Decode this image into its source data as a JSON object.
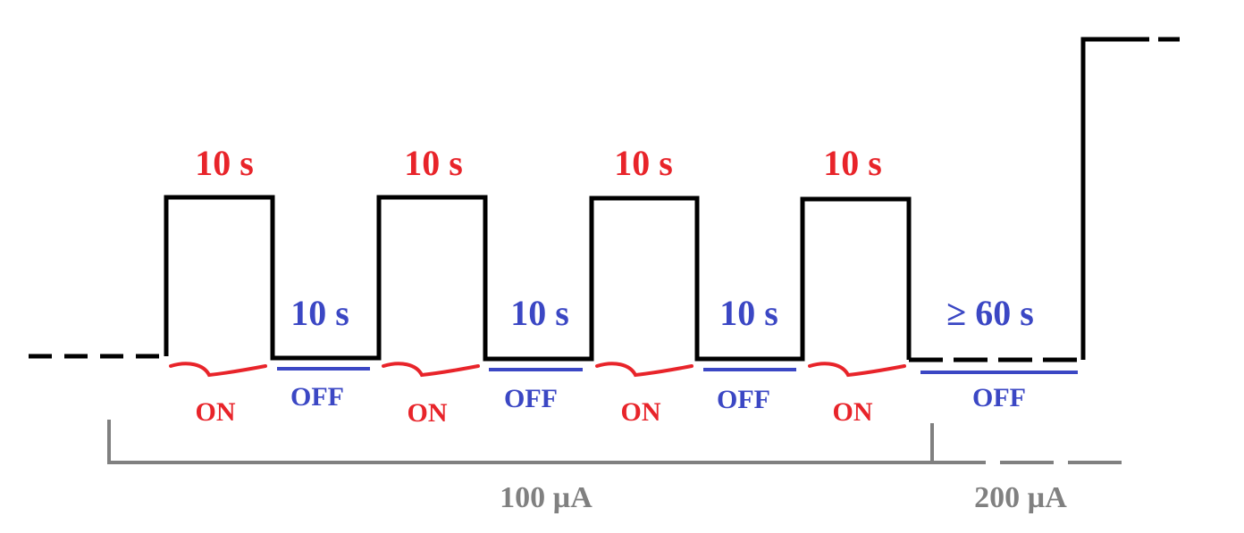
{
  "colors": {
    "waveform": "#000000",
    "on": "#e8242a",
    "off": "#3b47c4",
    "current": "#808080"
  },
  "on_pulses": [
    {
      "duration_label": "10 s",
      "state_label": "ON"
    },
    {
      "duration_label": "10 s",
      "state_label": "ON"
    },
    {
      "duration_label": "10 s",
      "state_label": "ON"
    },
    {
      "duration_label": "10 s",
      "state_label": "ON"
    }
  ],
  "off_intervals": [
    {
      "duration_label": "10 s",
      "state_label": "OFF"
    },
    {
      "duration_label": "10 s",
      "state_label": "OFF"
    },
    {
      "duration_label": "10 s",
      "state_label": "OFF"
    },
    {
      "duration_label": "≥ 60 s",
      "state_label": "OFF"
    }
  ],
  "current_levels": [
    {
      "label": "100 µA"
    },
    {
      "label": "200 µA"
    }
  ]
}
